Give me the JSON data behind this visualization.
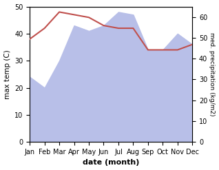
{
  "months": [
    "Jan",
    "Feb",
    "Mar",
    "Apr",
    "May",
    "Jun",
    "Jul",
    "Aug",
    "Sep",
    "Oct",
    "Nov",
    "Dec"
  ],
  "max_temp": [
    38,
    42,
    48,
    47,
    46,
    43,
    42,
    42,
    34,
    34,
    34,
    36
  ],
  "precipitation": [
    24,
    20,
    30,
    43,
    41,
    43,
    48,
    47,
    34,
    34,
    40,
    36
  ],
  "temp_color": "#c0504d",
  "precip_fill_color": "#b8bfe8",
  "xlabel": "date (month)",
  "ylabel_left": "max temp (C)",
  "ylabel_right": "med. precipitation (kg/m2)",
  "ylim_left": [
    0,
    50
  ],
  "ylim_right": [
    0,
    65
  ],
  "yticks_left": [
    0,
    10,
    20,
    30,
    40,
    50
  ],
  "yticks_right": [
    0,
    10,
    20,
    30,
    40,
    50,
    60
  ],
  "precip_scale_factor": 1.3,
  "bg_color": "#ffffff",
  "fig_width": 3.18,
  "fig_height": 2.47,
  "dpi": 100
}
